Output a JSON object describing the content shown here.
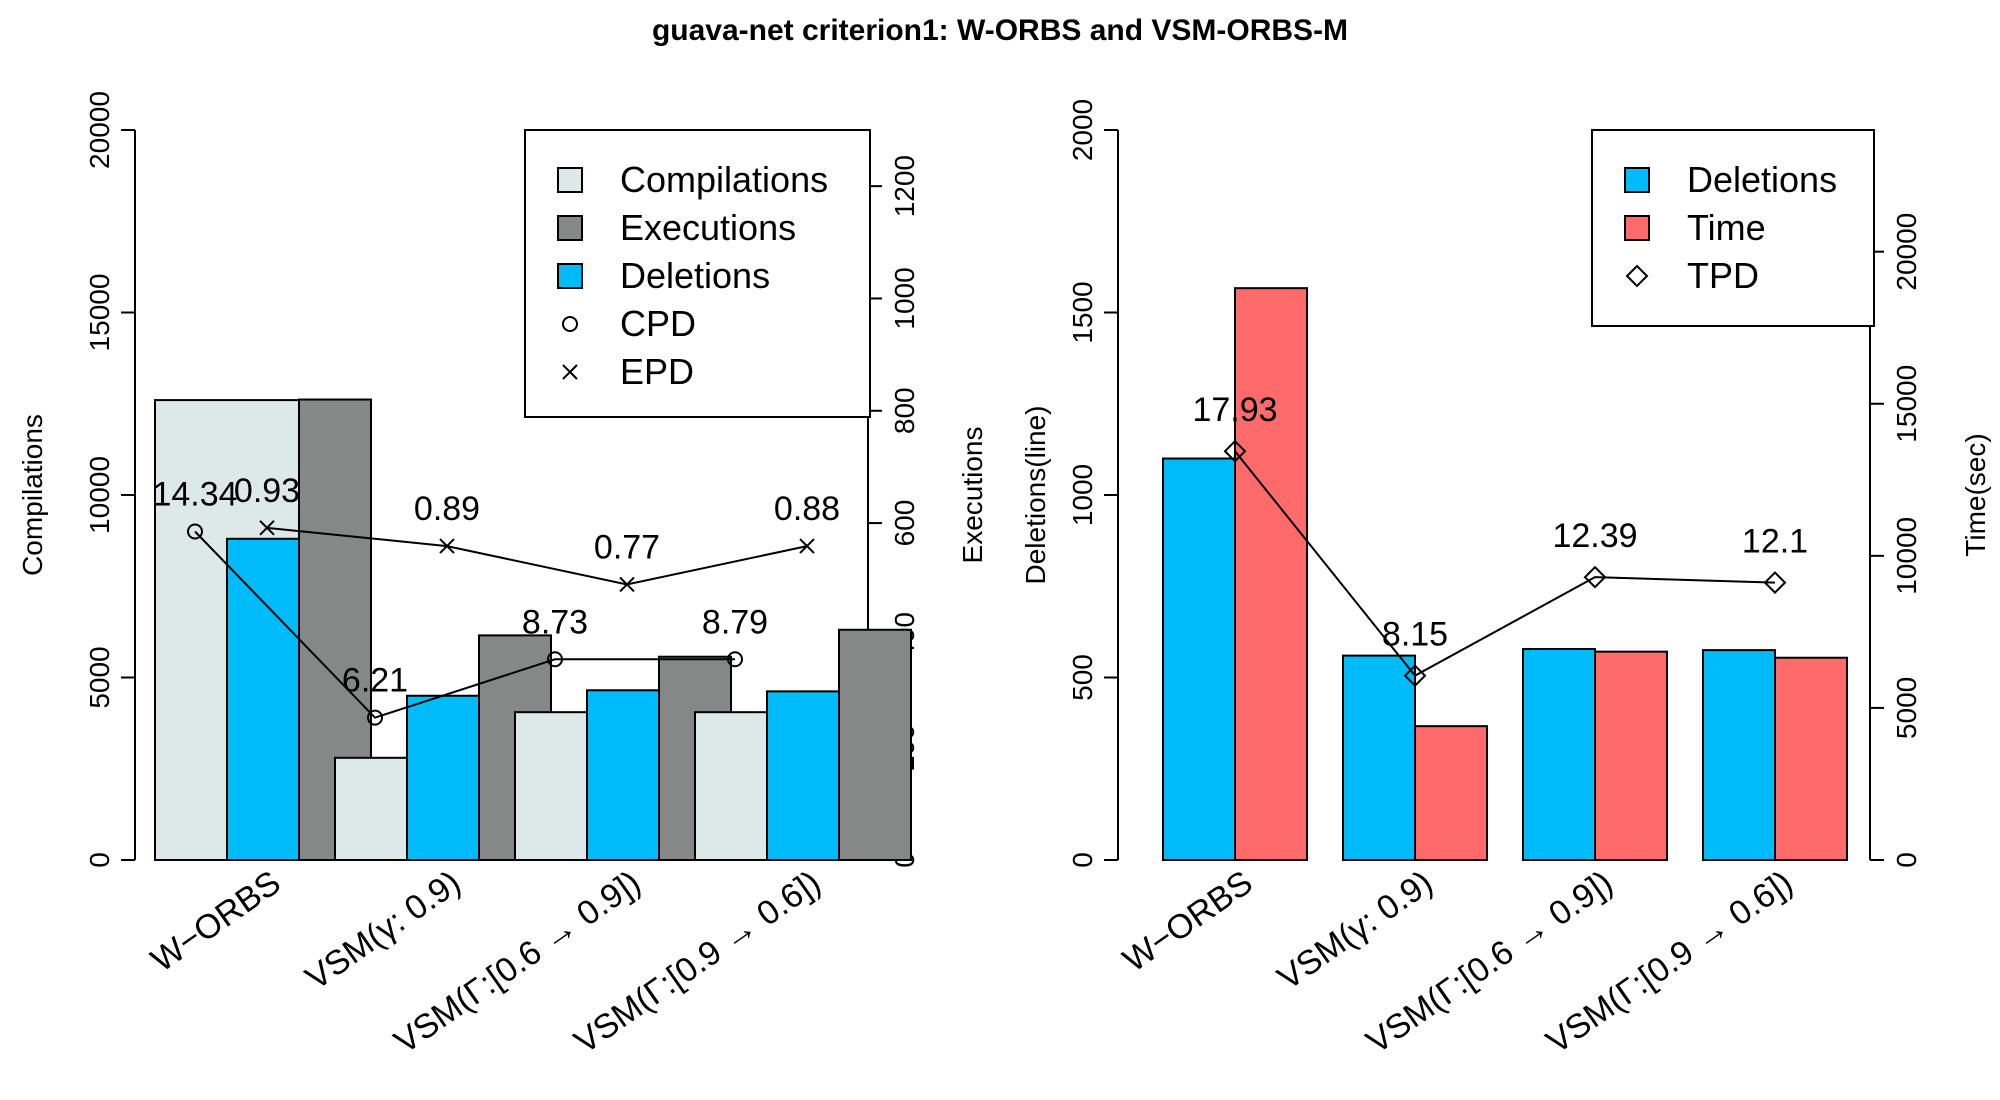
{
  "title": "guava-net criterion1: W-ORBS and VSM-ORBS-M",
  "categories": [
    "W−ORBS",
    "VSM(γ: 0.9)",
    "VSM(Γ:[0.6 → 0.9])",
    "VSM(Γ:[0.9 → 0.6])"
  ],
  "colors": {
    "compilations": "#dde9e8",
    "executions": "#858886",
    "deletions": "#00bbf9",
    "time": "#ff6b6b"
  },
  "chart_data": [
    {
      "type": "bar",
      "categories": [
        "W−ORBS",
        "VSM(γ: 0.9)",
        "VSM(Γ:[0.6 → 0.9])",
        "VSM(Γ:[0.9 → 0.6])"
      ],
      "ylabel": "Compilations",
      "ylim": [
        0,
        20000
      ],
      "yticks": [
        0,
        5000,
        10000,
        15000,
        20000
      ],
      "y2label": "Executions",
      "y2lim": [
        0,
        1300
      ],
      "y2ticks": [
        0,
        200,
        400,
        600,
        800,
        1000,
        1200
      ],
      "series": [
        {
          "name": "Compilations",
          "axis": "left",
          "values": [
            12600,
            2800,
            4050,
            4050
          ]
        },
        {
          "name": "Deletions",
          "axis": "left",
          "values": [
            8800,
            4500,
            4650,
            4620
          ]
        },
        {
          "name": "Executions",
          "axis": "right",
          "values": [
            820,
            400,
            362,
            410
          ]
        }
      ],
      "lines": [
        {
          "name": "CPD",
          "marker": "circle",
          "axis": "left",
          "y_positions": [
            9000,
            3900,
            5500,
            5500
          ],
          "labels": [
            "14.34",
            "6.21",
            "8.73",
            "8.79"
          ]
        },
        {
          "name": "EPD",
          "marker": "cross",
          "axis": "left",
          "y_positions": [
            9100,
            8600,
            7550,
            8600
          ],
          "labels": [
            "0.93",
            "0.89",
            "0.77",
            "0.88"
          ]
        }
      ],
      "legend": {
        "position": "top-right",
        "entries": [
          {
            "label": "Compilations",
            "kind": "box",
            "color": "#dde9e8"
          },
          {
            "label": "Executions",
            "kind": "box",
            "color": "#858886"
          },
          {
            "label": "Deletions",
            "kind": "box",
            "color": "#00bbf9"
          },
          {
            "label": "CPD",
            "kind": "circle"
          },
          {
            "label": "EPD",
            "kind": "cross"
          }
        ]
      }
    },
    {
      "type": "bar",
      "categories": [
        "W−ORBS",
        "VSM(γ: 0.9)",
        "VSM(Γ:[0.6 → 0.9])",
        "VSM(Γ:[0.9 → 0.6])"
      ],
      "ylabel": "Deletions(line)",
      "ylim": [
        0,
        2000
      ],
      "yticks": [
        0,
        500,
        1000,
        1500,
        2000
      ],
      "y2label": "Time(sec)",
      "y2lim": [
        0,
        24000
      ],
      "y2ticks": [
        0,
        5000,
        10000,
        15000,
        20000
      ],
      "series": [
        {
          "name": "Deletions",
          "axis": "left",
          "values": [
            1100,
            560,
            578,
            575
          ]
        },
        {
          "name": "Time",
          "axis": "right",
          "values": [
            18800,
            4400,
            6850,
            6650
          ]
        }
      ],
      "lines": [
        {
          "name": "TPD",
          "marker": "diamond",
          "axis": "left",
          "y_positions": [
            1120,
            505,
            775,
            760
          ],
          "labels": [
            "17.93",
            "8.15",
            "12.39",
            "12.1"
          ]
        }
      ],
      "legend": {
        "position": "top-right",
        "entries": [
          {
            "label": "Deletions",
            "kind": "box",
            "color": "#00bbf9"
          },
          {
            "label": "Time",
            "kind": "box",
            "color": "#ff6b6b"
          },
          {
            "label": "TPD",
            "kind": "diamond"
          }
        ]
      }
    }
  ]
}
